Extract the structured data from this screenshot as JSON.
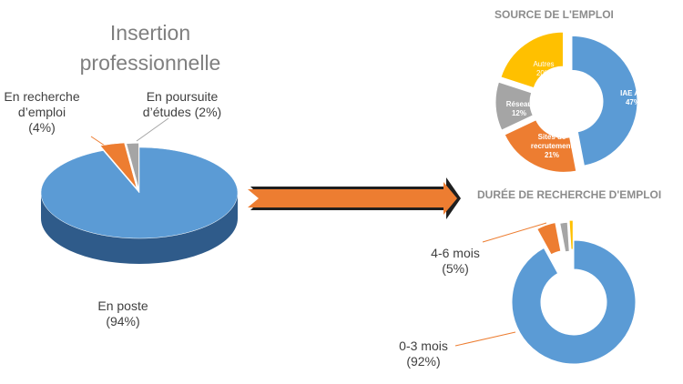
{
  "chart_data": [
    {
      "type": "pie3d",
      "title": "Insertion professionnelle",
      "categories": [
        "En poste",
        "En recherche d’emploi",
        "En poursuite d’études"
      ],
      "values": [
        94,
        4,
        2
      ],
      "value_labels": [
        "(94%)",
        "(4%)",
        "(2%)"
      ],
      "colors": [
        "#5b9bd5",
        "#ed7d31",
        "#a5a5a5"
      ]
    },
    {
      "type": "doughnut",
      "title": "SOURCE DE L'EMPLOI",
      "categories": [
        "IAE Aix",
        "Sites de recrutement",
        "Réseau",
        "Autres"
      ],
      "values": [
        47,
        21,
        12,
        20
      ],
      "value_labels": [
        "47%",
        "21%",
        "12%",
        "20%"
      ],
      "colors": [
        "#5b9bd5",
        "#ed7d31",
        "#a5a5a5",
        "#ffc000"
      ]
    },
    {
      "type": "doughnut",
      "title": "DURÉE DE RECHERCHE D'EMPLOI",
      "categories": [
        "0-3 mois",
        "4-6 mois",
        null,
        null
      ],
      "values": [
        92,
        5,
        2,
        1
      ],
      "value_labels": [
        "(92%)",
        "(5%)",
        null,
        null
      ],
      "colors": [
        "#5b9bd5",
        "#ed7d31",
        "#a5a5a5",
        "#ffc000"
      ]
    }
  ]
}
